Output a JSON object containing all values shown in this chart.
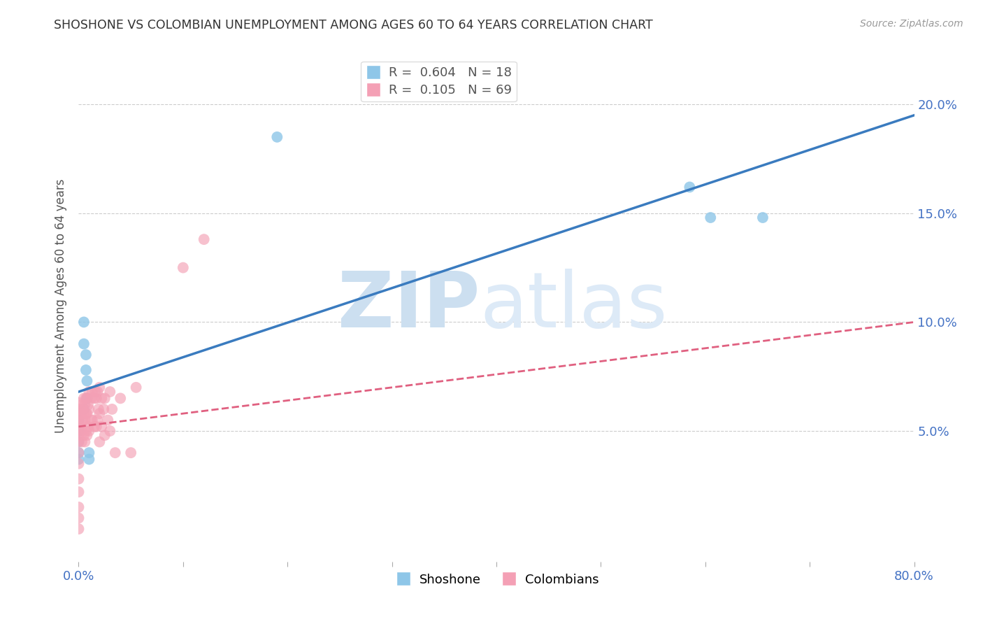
{
  "title": "SHOSHONE VS COLOMBIAN UNEMPLOYMENT AMONG AGES 60 TO 64 YEARS CORRELATION CHART",
  "source": "Source: ZipAtlas.com",
  "ylabel": "Unemployment Among Ages 60 to 64 years",
  "xlim": [
    0.0,
    0.8
  ],
  "ylim": [
    -0.01,
    0.225
  ],
  "yticks_right": [
    0.05,
    0.1,
    0.15,
    0.2
  ],
  "shoshone_R": 0.604,
  "shoshone_N": 18,
  "colombian_R": 0.105,
  "colombian_N": 69,
  "shoshone_color": "#8ec6e8",
  "colombian_color": "#f4a0b5",
  "shoshone_line_color": "#3a7bbf",
  "colombian_line_color": "#e06080",
  "background_color": "#ffffff",
  "grid_color": "#cccccc",
  "watermark_zip_color": "#ccdff0",
  "watermark_atlas_color": "#ddeaf7",
  "legend_label_shoshone": "Shoshone",
  "legend_label_colombian": "Colombians",
  "sh_line_x0": 0.0,
  "sh_line_y0": 0.068,
  "sh_line_x1": 0.8,
  "sh_line_y1": 0.195,
  "co_line_x0": 0.0,
  "co_line_y0": 0.052,
  "co_line_x1": 0.8,
  "co_line_y1": 0.1,
  "shoshone_x": [
    0.0,
    0.0,
    0.0,
    0.0,
    0.0,
    0.005,
    0.005,
    0.005,
    0.007,
    0.007,
    0.008,
    0.008,
    0.01,
    0.01,
    0.585,
    0.605,
    0.655,
    0.19
  ],
  "shoshone_y": [
    0.055,
    0.05,
    0.045,
    0.04,
    0.037,
    0.1,
    0.09,
    0.06,
    0.085,
    0.078,
    0.073,
    0.065,
    0.04,
    0.037,
    0.162,
    0.148,
    0.148,
    0.185
  ],
  "colombian_x": [
    0.0,
    0.0,
    0.0,
    0.0,
    0.0,
    0.0,
    0.0,
    0.0,
    0.0,
    0.0,
    0.0,
    0.0,
    0.0,
    0.0,
    0.0,
    0.003,
    0.003,
    0.003,
    0.003,
    0.003,
    0.004,
    0.004,
    0.005,
    0.005,
    0.005,
    0.006,
    0.006,
    0.006,
    0.007,
    0.007,
    0.007,
    0.008,
    0.008,
    0.008,
    0.009,
    0.009,
    0.01,
    0.01,
    0.01,
    0.012,
    0.012,
    0.013,
    0.013,
    0.015,
    0.015,
    0.016,
    0.017,
    0.017,
    0.018,
    0.018,
    0.019,
    0.02,
    0.02,
    0.02,
    0.022,
    0.022,
    0.024,
    0.025,
    0.025,
    0.028,
    0.03,
    0.03,
    0.032,
    0.035,
    0.04,
    0.05,
    0.055,
    0.1,
    0.12
  ],
  "colombian_y": [
    0.063,
    0.06,
    0.058,
    0.055,
    0.052,
    0.05,
    0.048,
    0.045,
    0.04,
    0.035,
    0.028,
    0.022,
    0.015,
    0.01,
    0.005,
    0.062,
    0.058,
    0.054,
    0.05,
    0.045,
    0.06,
    0.055,
    0.065,
    0.058,
    0.048,
    0.062,
    0.055,
    0.045,
    0.065,
    0.058,
    0.05,
    0.065,
    0.058,
    0.048,
    0.062,
    0.052,
    0.068,
    0.06,
    0.05,
    0.065,
    0.055,
    0.068,
    0.055,
    0.065,
    0.052,
    0.068,
    0.065,
    0.052,
    0.068,
    0.055,
    0.06,
    0.07,
    0.058,
    0.045,
    0.065,
    0.052,
    0.06,
    0.065,
    0.048,
    0.055,
    0.068,
    0.05,
    0.06,
    0.04,
    0.065,
    0.04,
    0.07,
    0.125,
    0.138
  ]
}
